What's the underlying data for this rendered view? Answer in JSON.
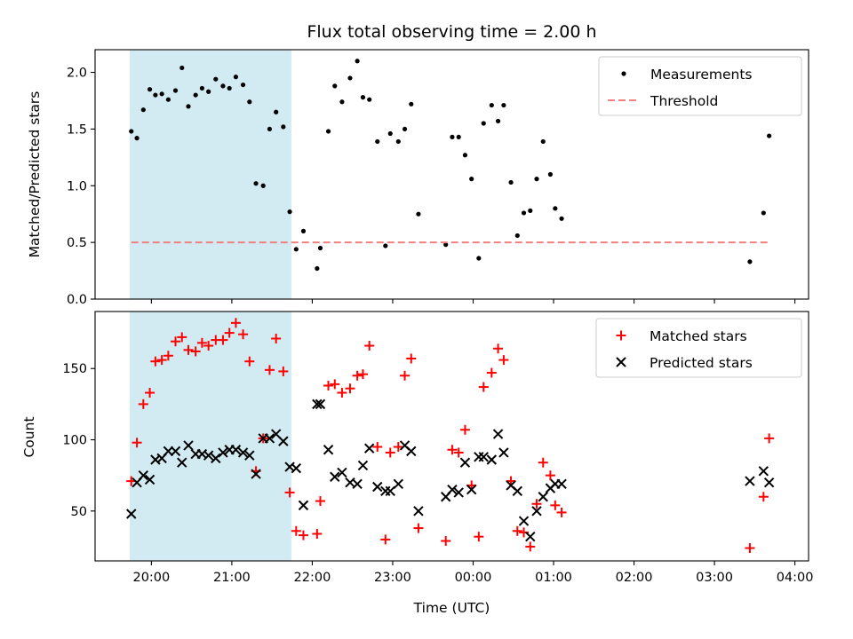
{
  "chart_data": [
    {
      "type": "scatter",
      "title": "Flux total observing time = 2.00 h",
      "xlabel": "",
      "ylabel": "Matched/Predicted stars",
      "x_unit": "hours since 19:00 UTC",
      "xlim": [
        0.3,
        9.17
      ],
      "ylim": [
        0,
        2.2
      ],
      "yticks": [
        0.0,
        0.5,
        1.0,
        1.5,
        2.0
      ],
      "ytick_labels": [
        "0.0",
        "0.5",
        "1.0",
        "1.5",
        "2.0"
      ],
      "highlight_span": [
        0.73,
        2.74
      ],
      "legend": {
        "placement": "top-right",
        "entries": [
          "Measurements",
          "Threshold"
        ]
      },
      "series": [
        {
          "name": "Measurements",
          "marker": "dot",
          "color": "#000000",
          "points": [
            [
              0.75,
              1.48
            ],
            [
              0.82,
              1.42
            ],
            [
              0.9,
              1.67
            ],
            [
              0.98,
              1.85
            ],
            [
              1.05,
              1.8
            ],
            [
              1.13,
              1.81
            ],
            [
              1.21,
              1.76
            ],
            [
              1.3,
              1.84
            ],
            [
              1.38,
              2.04
            ],
            [
              1.46,
              1.7
            ],
            [
              1.55,
              1.8
            ],
            [
              1.63,
              1.86
            ],
            [
              1.71,
              1.83
            ],
            [
              1.8,
              1.94
            ],
            [
              1.89,
              1.88
            ],
            [
              1.97,
              1.86
            ],
            [
              2.05,
              1.96
            ],
            [
              2.14,
              1.89
            ],
            [
              2.22,
              1.74
            ],
            [
              2.3,
              1.02
            ],
            [
              2.39,
              1.0
            ],
            [
              2.47,
              1.5
            ],
            [
              2.55,
              1.65
            ],
            [
              2.64,
              1.52
            ],
            [
              2.72,
              0.77
            ],
            [
              2.8,
              0.44
            ],
            [
              2.89,
              0.6
            ],
            [
              3.06,
              0.27
            ],
            [
              3.1,
              0.45
            ],
            [
              3.2,
              1.48
            ],
            [
              3.28,
              1.88
            ],
            [
              3.37,
              1.74
            ],
            [
              3.47,
              1.95
            ],
            [
              3.56,
              2.1
            ],
            [
              3.63,
              1.78
            ],
            [
              3.71,
              1.76
            ],
            [
              3.81,
              1.39
            ],
            [
              3.91,
              0.47
            ],
            [
              3.97,
              1.46
            ],
            [
              4.07,
              1.39
            ],
            [
              4.15,
              1.5
            ],
            [
              4.23,
              1.72
            ],
            [
              4.32,
              0.75
            ],
            [
              4.66,
              0.48
            ],
            [
              4.74,
              1.43
            ],
            [
              4.82,
              1.43
            ],
            [
              4.9,
              1.27
            ],
            [
              4.98,
              1.06
            ],
            [
              5.07,
              0.36
            ],
            [
              5.13,
              1.55
            ],
            [
              5.23,
              1.71
            ],
            [
              5.31,
              1.57
            ],
            [
              5.38,
              1.71
            ],
            [
              5.47,
              1.03
            ],
            [
              5.55,
              0.56
            ],
            [
              5.63,
              0.76
            ],
            [
              5.71,
              0.78
            ],
            [
              5.79,
              1.06
            ],
            [
              5.87,
              1.39
            ],
            [
              5.96,
              1.1
            ],
            [
              6.02,
              0.8
            ],
            [
              6.1,
              0.71
            ],
            [
              8.44,
              0.33
            ],
            [
              8.61,
              0.76
            ],
            [
              8.68,
              1.44
            ]
          ]
        },
        {
          "name": "Threshold",
          "type": "line",
          "style": "dashed",
          "color": "#f08080",
          "x": [
            0.75,
            8.7
          ],
          "y": [
            0.5,
            0.5
          ]
        }
      ]
    },
    {
      "type": "scatter",
      "title": "",
      "xlabel": "Time (UTC)",
      "ylabel": "Count",
      "x_unit": "hours since 19:00 UTC",
      "xlim": [
        0.3,
        9.17
      ],
      "ylim": [
        15,
        190
      ],
      "yticks": [
        50,
        100,
        150
      ],
      "ytick_labels": [
        "50",
        "100",
        "150"
      ],
      "xticks": [
        1,
        2,
        3,
        4,
        5,
        6,
        7,
        8,
        9
      ],
      "xtick_labels": [
        "20:00",
        "21:00",
        "22:00",
        "23:00",
        "00:00",
        "01:00",
        "02:00",
        "03:00",
        "04:00"
      ],
      "highlight_span": [
        0.73,
        2.74
      ],
      "legend": {
        "placement": "top-right",
        "entries": [
          "Matched stars",
          "Predicted stars"
        ]
      },
      "series": [
        {
          "name": "Matched stars",
          "marker": "plus",
          "color": "#ff0000",
          "points": [
            [
              0.75,
              71
            ],
            [
              0.82,
              98
            ],
            [
              0.9,
              125
            ],
            [
              0.98,
              133
            ],
            [
              1.05,
              155
            ],
            [
              1.13,
              156
            ],
            [
              1.21,
              159
            ],
            [
              1.3,
              169
            ],
            [
              1.38,
              172
            ],
            [
              1.46,
              163
            ],
            [
              1.55,
              162
            ],
            [
              1.63,
              168
            ],
            [
              1.71,
              166
            ],
            [
              1.8,
              170
            ],
            [
              1.89,
              170
            ],
            [
              1.97,
              175
            ],
            [
              2.05,
              182
            ],
            [
              2.14,
              174
            ],
            [
              2.22,
              155
            ],
            [
              2.3,
              78
            ],
            [
              2.39,
              101
            ],
            [
              2.47,
              149
            ],
            [
              2.55,
              171
            ],
            [
              2.64,
              148
            ],
            [
              2.72,
              63
            ],
            [
              2.8,
              36
            ],
            [
              2.89,
              33
            ],
            [
              3.06,
              34
            ],
            [
              3.1,
              57
            ],
            [
              3.2,
              138
            ],
            [
              3.28,
              139
            ],
            [
              3.37,
              133
            ],
            [
              3.47,
              136
            ],
            [
              3.56,
              145
            ],
            [
              3.63,
              146
            ],
            [
              3.71,
              166
            ],
            [
              3.81,
              95
            ],
            [
              3.91,
              30
            ],
            [
              3.97,
              91
            ],
            [
              4.07,
              95
            ],
            [
              4.15,
              145
            ],
            [
              4.23,
              157
            ],
            [
              4.32,
              38
            ],
            [
              4.66,
              29
            ],
            [
              4.74,
              93
            ],
            [
              4.82,
              91
            ],
            [
              4.9,
              107
            ],
            [
              4.98,
              68
            ],
            [
              5.07,
              32
            ],
            [
              5.13,
              137
            ],
            [
              5.23,
              147
            ],
            [
              5.31,
              164
            ],
            [
              5.38,
              156
            ],
            [
              5.47,
              71
            ],
            [
              5.55,
              36
            ],
            [
              5.63,
              35
            ],
            [
              5.71,
              25
            ],
            [
              5.79,
              55
            ],
            [
              5.87,
              84
            ],
            [
              5.96,
              75
            ],
            [
              6.02,
              54
            ],
            [
              6.1,
              49
            ],
            [
              8.44,
              24
            ],
            [
              8.61,
              60
            ],
            [
              8.68,
              101
            ]
          ]
        },
        {
          "name": "Predicted stars",
          "marker": "x",
          "color": "#000000",
          "points": [
            [
              0.75,
              48
            ],
            [
              0.82,
              70
            ],
            [
              0.9,
              75
            ],
            [
              0.98,
              72
            ],
            [
              1.05,
              86
            ],
            [
              1.13,
              87
            ],
            [
              1.21,
              92
            ],
            [
              1.3,
              92
            ],
            [
              1.38,
              84
            ],
            [
              1.46,
              96
            ],
            [
              1.55,
              90
            ],
            [
              1.63,
              90
            ],
            [
              1.71,
              89
            ],
            [
              1.8,
              87
            ],
            [
              1.89,
              91
            ],
            [
              1.97,
              93
            ],
            [
              2.05,
              93
            ],
            [
              2.14,
              91
            ],
            [
              2.22,
              89
            ],
            [
              2.3,
              76
            ],
            [
              2.39,
              101
            ],
            [
              2.47,
              101
            ],
            [
              2.55,
              104
            ],
            [
              2.64,
              99
            ],
            [
              2.72,
              81
            ],
            [
              2.8,
              80
            ],
            [
              2.89,
              54
            ],
            [
              3.06,
              125
            ],
            [
              3.1,
              125
            ],
            [
              3.2,
              93
            ],
            [
              3.28,
              74
            ],
            [
              3.37,
              77
            ],
            [
              3.47,
              70
            ],
            [
              3.56,
              69
            ],
            [
              3.63,
              82
            ],
            [
              3.71,
              94
            ],
            [
              3.81,
              67
            ],
            [
              3.91,
              64
            ],
            [
              3.97,
              64
            ],
            [
              4.07,
              69
            ],
            [
              4.15,
              96
            ],
            [
              4.23,
              92
            ],
            [
              4.32,
              50
            ],
            [
              4.66,
              60
            ],
            [
              4.74,
              65
            ],
            [
              4.82,
              63
            ],
            [
              4.9,
              84
            ],
            [
              4.98,
              65
            ],
            [
              5.07,
              88
            ],
            [
              5.13,
              88
            ],
            [
              5.23,
              86
            ],
            [
              5.31,
              104
            ],
            [
              5.38,
              91
            ],
            [
              5.47,
              68
            ],
            [
              5.55,
              64
            ],
            [
              5.63,
              43
            ],
            [
              5.71,
              32
            ],
            [
              5.79,
              50
            ],
            [
              5.87,
              60
            ],
            [
              5.96,
              66
            ],
            [
              6.02,
              69
            ],
            [
              6.1,
              69
            ],
            [
              8.44,
              71
            ],
            [
              8.61,
              78
            ],
            [
              8.68,
              70
            ]
          ]
        }
      ]
    }
  ],
  "colors": {
    "span_fill": "#add8e6",
    "threshold": "#f08080",
    "matched": "#ff0000",
    "predicted": "#000000",
    "measurement": "#000000",
    "legend_border": "#cccccc"
  }
}
